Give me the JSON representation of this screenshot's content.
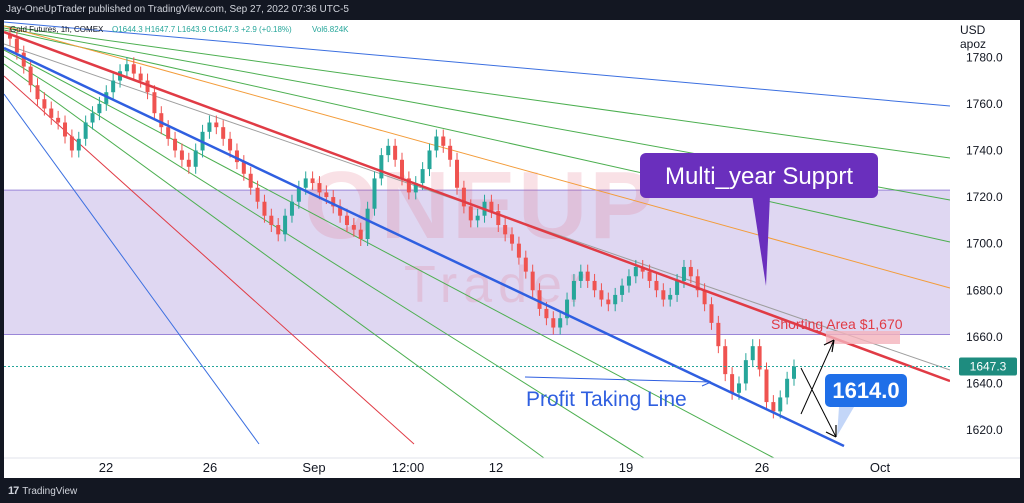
{
  "header": {
    "publish_text": "Jay-OneUpTrader published on TradingView.com, Sep 27, 2022 07:36 UTC-5"
  },
  "legend": {
    "symbol": "Gold Futures, 1h, COMEX",
    "ohlc": "O1644.3  H1647.7  L1643.9  C1647.3  +2.9 (+0.18%)",
    "volume": "Vol6.824K"
  },
  "currency": {
    "line1": "USD",
    "line2": "apoz"
  },
  "watermark": {
    "big": "ONEUP",
    "small": "Trader"
  },
  "price_badge": "1647.3",
  "annotations": {
    "multi_year": "Multi_year Supprt",
    "shorting_area": "Shorting Area $1,670",
    "profit_taking": "Profit Taking Line",
    "target_value": "1614.0"
  },
  "footer": {
    "brand": "TradingView",
    "brand_mark": "17"
  },
  "colors": {
    "background": "#ffffff",
    "frame": "#131722",
    "zone_fill": "#d9d0f0",
    "red_line": "#e03b45",
    "blue_line": "#2f5fe0",
    "multi_year_box": "#6a2fbd",
    "target_box": "#1f6fe8",
    "candle_up": "#26a69a",
    "candle_down": "#ef5350",
    "price_badge": "#1e8c7f"
  },
  "chart_data": {
    "type": "candlestick",
    "title": "Gold Futures, 1h, COMEX",
    "ylabel": "USD apoz",
    "ylim": [
      1608,
      1796
    ],
    "y_ticks": [
      1620.0,
      1640.0,
      1660.0,
      1680.0,
      1700.0,
      1720.0,
      1740.0,
      1760.0,
      1780.0
    ],
    "x_ticks": [
      "22",
      "26",
      "Sep",
      "12:00",
      "12",
      "19",
      "26",
      "Oct"
    ],
    "last_price": 1647.3,
    "shorting_zone": [
      1661,
      1723
    ],
    "approx_closes": [
      1788,
      1782,
      1776,
      1768,
      1762,
      1758,
      1754,
      1752,
      1746,
      1740,
      1745,
      1752,
      1756,
      1760,
      1765,
      1770,
      1774,
      1777,
      1773,
      1770,
      1765,
      1756,
      1750,
      1745,
      1740,
      1736,
      1733,
      1740,
      1748,
      1752,
      1750,
      1745,
      1740,
      1735,
      1730,
      1724,
      1718,
      1712,
      1708,
      1704,
      1712,
      1718,
      1724,
      1728,
      1726,
      1722,
      1720,
      1716,
      1712,
      1708,
      1706,
      1702,
      1715,
      1728,
      1738,
      1742,
      1736,
      1728,
      1722,
      1726,
      1732,
      1740,
      1746,
      1742,
      1736,
      1724,
      1716,
      1710,
      1712,
      1718,
      1714,
      1708,
      1704,
      1700,
      1694,
      1688,
      1680,
      1672,
      1668,
      1664,
      1668,
      1676,
      1684,
      1688,
      1684,
      1680,
      1676,
      1674,
      1678,
      1682,
      1686,
      1690,
      1688,
      1684,
      1680,
      1676,
      1678,
      1684,
      1690,
      1686,
      1680,
      1674,
      1666,
      1656,
      1644,
      1636,
      1640,
      1650,
      1656,
      1646,
      1632,
      1628,
      1634,
      1642,
      1647.3
    ],
    "annotations": [
      "Multi_year Suppr t",
      "Shorting Area $1,670",
      "Profit Taking Line",
      "1614.0"
    ]
  }
}
